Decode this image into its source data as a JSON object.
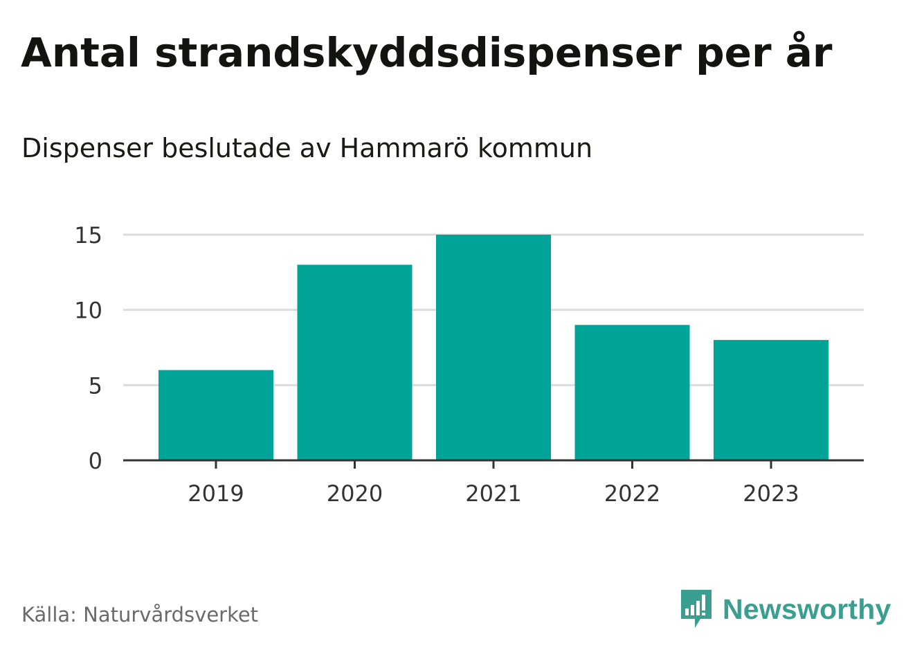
{
  "title": "Antal strandskyddsdispenser per år",
  "subtitle": "Dispenser beslutade av Hammarö kommun",
  "source": "Källa: Naturvårdsverket",
  "brand": {
    "name": "Newsworthy",
    "logo_icon": "bar-chart-speech-bubble-icon",
    "color": "#3a9e90"
  },
  "colors": {
    "bar": "#00a398",
    "grid": "#dcdcdc",
    "axis": "#333333",
    "tick_text": "#333333"
  },
  "chart_data": {
    "type": "bar",
    "title": "Antal strandskyddsdispenser per år",
    "subtitle": "Dispenser beslutade av Hammarö kommun",
    "categories": [
      "2019",
      "2020",
      "2021",
      "2022",
      "2023"
    ],
    "values": [
      6,
      13,
      15,
      9,
      8
    ],
    "xlabel": "",
    "ylabel": "",
    "ylim": [
      0,
      15
    ],
    "yticks": [
      "0",
      "5",
      "10",
      "15"
    ],
    "grid": true,
    "legend": "none"
  }
}
